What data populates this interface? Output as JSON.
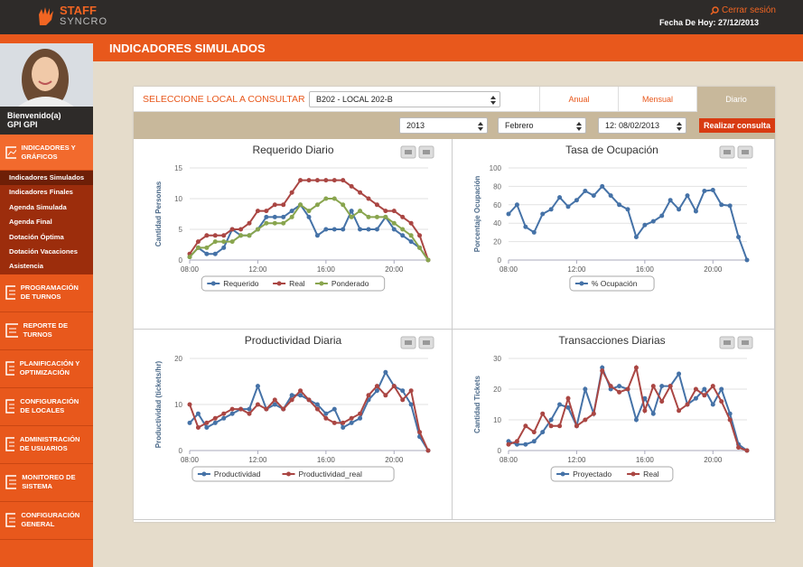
{
  "header": {
    "brand_top": "STAFF",
    "brand_bottom": "SYNCRO",
    "logout": "Cerrar sesión",
    "date": "Fecha De Hoy: 27/12/2013"
  },
  "page_title": "INDICADORES SIMULADOS",
  "sidebar": {
    "welcome": "Bienvenido(a)",
    "user": "GPI GPI",
    "active": "INDICADORES Y GRÁFICOS",
    "submenu": [
      "Indicadores Simulados",
      "Indicadores Finales",
      "Agenda Simulada",
      "Agenda Final",
      "Dotación Óptima",
      "Dotación Vacaciones",
      "Asistencia"
    ],
    "menu": [
      "PROGRAMACIÓN DE TURNOS",
      "REPORTE DE TURNOS",
      "PLANIFICACIÓN Y OPTIMIZACIÓN",
      "CONFIGURACIÓN DE LOCALES",
      "ADMINISTRACIÓN DE USUARIOS",
      "MONITOREO DE SISTEMA",
      "CONFIGURACIÓN GENERAL"
    ]
  },
  "filters": {
    "label": "SELECCIONE LOCAL A CONSULTAR",
    "local": "B202 - LOCAL 202-B",
    "tabs": [
      "Anual",
      "Mensual",
      "Diario"
    ],
    "year": "2013",
    "month": "Febrero",
    "day": "12: 08/02/2013",
    "button": "Realizar consulta"
  },
  "chart_data": [
    {
      "type": "line",
      "title": "Requerido Diario",
      "y_label": "Cantidad Personas",
      "categories": [
        "08:00",
        null,
        null,
        null,
        null,
        null,
        null,
        null,
        "12:00",
        null,
        null,
        null,
        null,
        null,
        null,
        null,
        "16:00",
        null,
        null,
        null,
        null,
        null,
        null,
        null,
        "20:00",
        null,
        null,
        null,
        null
      ],
      "ylim": [
        0,
        15
      ],
      "yticks": [
        0,
        5,
        10,
        15
      ],
      "grid": true,
      "series": [
        {
          "name": "Requerido",
          "color": "#4572a7",
          "values": [
            0.5,
            2,
            1,
            1,
            2,
            5,
            4,
            4,
            5,
            7,
            7,
            7,
            8,
            9,
            7,
            4,
            5,
            5,
            5,
            8,
            5,
            5,
            5,
            7,
            5,
            4,
            3,
            2,
            0
          ]
        },
        {
          "name": "Real",
          "color": "#aa4643",
          "values": [
            1,
            3,
            4,
            4,
            4,
            5,
            5,
            6,
            8,
            8,
            9,
            9,
            11,
            13,
            13,
            13,
            13,
            13,
            13,
            12,
            11,
            10,
            9,
            8,
            8,
            7,
            6,
            4,
            0
          ]
        },
        {
          "name": "Ponderado",
          "color": "#89a54e",
          "values": [
            0.5,
            2,
            2,
            3,
            3,
            3,
            4,
            4,
            5,
            6,
            6,
            6,
            7,
            9,
            8,
            9,
            10,
            10,
            9,
            7,
            8,
            7,
            7,
            7,
            6,
            5,
            4,
            2,
            0
          ]
        }
      ]
    },
    {
      "type": "line",
      "title": "Tasa de Ocupación",
      "y_label": "Porcentaje Ocupación",
      "categories": [
        "08:00",
        null,
        null,
        null,
        null,
        null,
        null,
        null,
        "12:00",
        null,
        null,
        null,
        null,
        null,
        null,
        null,
        "16:00",
        null,
        null,
        null,
        null,
        null,
        null,
        null,
        "20:00",
        null,
        null,
        null,
        null
      ],
      "ylim": [
        0,
        100
      ],
      "yticks": [
        0,
        20,
        40,
        60,
        80,
        100
      ],
      "grid": true,
      "series": [
        {
          "name": "% Ocupación",
          "color": "#4572a7",
          "values": [
            50,
            60,
            36,
            30,
            50,
            55,
            68,
            58,
            65,
            75,
            70,
            80,
            70,
            60,
            55,
            25,
            38,
            42,
            48,
            65,
            55,
            70,
            53,
            75,
            76,
            60,
            59,
            25,
            0
          ]
        }
      ]
    },
    {
      "type": "line",
      "title": "Productividad Diaria",
      "y_label": "Productividad (tickets/hr)",
      "categories": [
        "08:00",
        null,
        null,
        null,
        null,
        null,
        null,
        null,
        "12:00",
        null,
        null,
        null,
        null,
        null,
        null,
        null,
        "16:00",
        null,
        null,
        null,
        null,
        null,
        null,
        null,
        "20:00",
        null,
        null,
        null,
        null
      ],
      "ylim": [
        0,
        20
      ],
      "yticks": [
        0,
        10,
        20
      ],
      "grid": true,
      "series": [
        {
          "name": "Productividad",
          "color": "#4572a7",
          "values": [
            6,
            8,
            5,
            6,
            7,
            8,
            9,
            9,
            14,
            9,
            10,
            9,
            12,
            12,
            11,
            10,
            8,
            9,
            5,
            6,
            7,
            11,
            13,
            17,
            14,
            13,
            10,
            3,
            0
          ]
        },
        {
          "name": "Productividad_real",
          "color": "#aa4643",
          "values": [
            10,
            5,
            6,
            7,
            8,
            9,
            9,
            8,
            10,
            9,
            11,
            9,
            11,
            13,
            11,
            9,
            7,
            6,
            6,
            7,
            8,
            12,
            14,
            12,
            14,
            11,
            13,
            4,
            0
          ]
        }
      ]
    },
    {
      "type": "line",
      "title": "Transacciones Diarias",
      "y_label": "Cantidad Tickets",
      "categories": [
        "08:00",
        null,
        null,
        null,
        null,
        null,
        null,
        null,
        "12:00",
        null,
        null,
        null,
        null,
        null,
        null,
        null,
        "16:00",
        null,
        null,
        null,
        null,
        null,
        null,
        null,
        "20:00",
        null,
        null,
        null,
        null
      ],
      "ylim": [
        0,
        30
      ],
      "yticks": [
        0,
        10,
        20,
        30
      ],
      "grid": true,
      "series": [
        {
          "name": "Proyectado",
          "color": "#4572a7",
          "values": [
            3,
            2,
            2,
            3,
            6,
            10,
            15,
            14,
            8,
            20,
            12,
            27,
            20,
            21,
            20,
            10,
            17,
            12,
            21,
            21,
            25,
            15,
            17,
            20,
            15,
            20,
            12,
            2,
            0
          ]
        },
        {
          "name": "Real",
          "color": "#aa4643",
          "values": [
            2,
            3,
            8,
            6,
            12,
            8,
            8,
            17,
            8,
            10,
            12,
            26,
            21,
            19,
            20,
            27,
            13,
            21,
            16,
            21,
            13,
            15,
            20,
            18,
            21,
            16,
            10,
            1,
            0
          ]
        }
      ]
    }
  ]
}
